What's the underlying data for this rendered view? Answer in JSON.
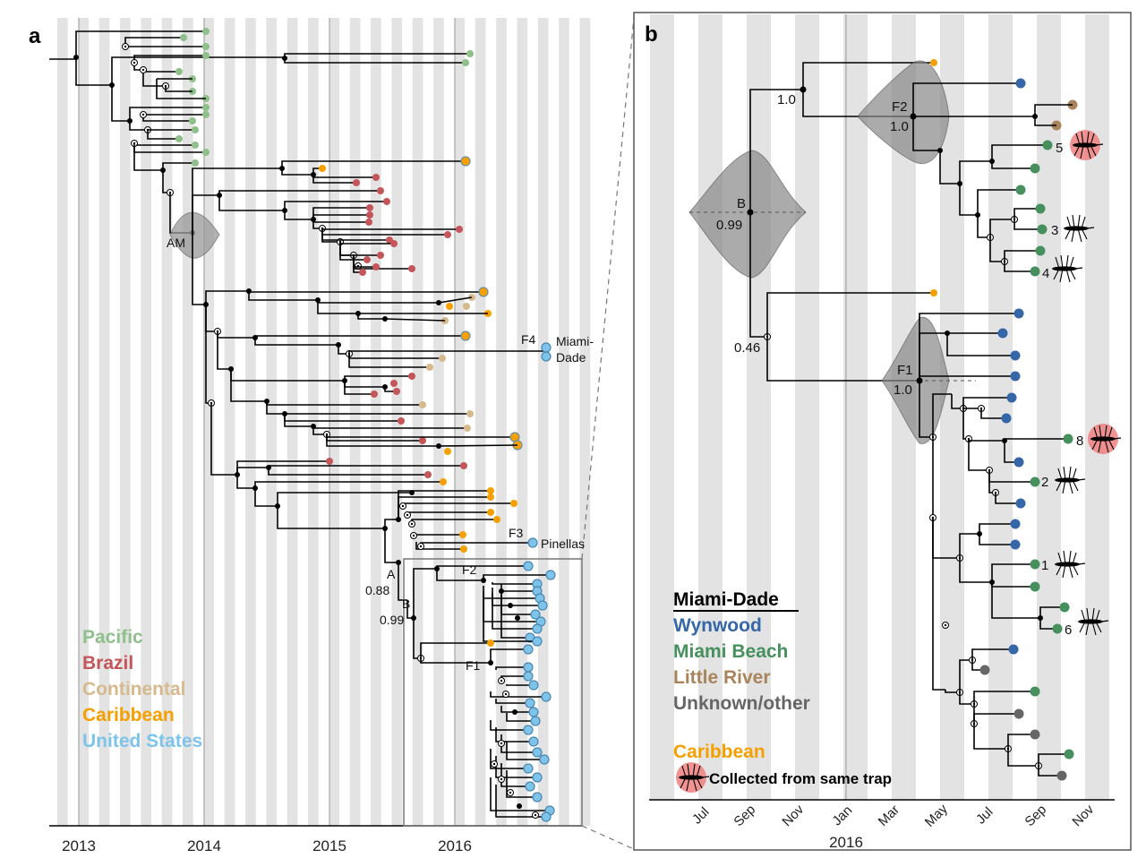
{
  "panel_a": {
    "label": "a",
    "year_ticks": [
      "2013",
      "2014",
      "2015",
      "2016"
    ],
    "node_labels": {
      "am": "AM",
      "a": "A",
      "a_support": "0.88",
      "b": "B",
      "b_support": "0.99",
      "f2": "F2",
      "f1": "F1",
      "f3": "F3",
      "f3_place": "Pinellas",
      "f4": "F4",
      "f4_place_1": "Miami-",
      "f4_place_2": "Dade"
    },
    "legend": [
      {
        "label": "Pacific",
        "color": "#8fbf8a"
      },
      {
        "label": "Brazil",
        "color": "#c4565a"
      },
      {
        "label": "Continental",
        "color": "#d7b98e"
      },
      {
        "label": "Caribbean",
        "color": "#f5a000"
      },
      {
        "label": "United States",
        "color": "#7ec4ea"
      }
    ]
  },
  "panel_b": {
    "label": "b",
    "month_ticks": [
      "Jul",
      "Sep",
      "Nov",
      "Jan",
      "Mar",
      "May",
      "Jul",
      "Sep",
      "Nov"
    ],
    "year_label": "2016",
    "node_labels": {
      "b": "B",
      "b_support": "0.99",
      "root_support": "0.46",
      "upper_support": "1.0",
      "f2": "F2",
      "f2_support": "1.0",
      "f1": "F1",
      "f1_support": "1.0"
    },
    "trap_numbers": [
      "5",
      "3",
      "4",
      "8",
      "2",
      "1",
      "6"
    ],
    "legend_title": "Miami-Dade",
    "legend": [
      {
        "label": "Wynwood",
        "color": "#3566a8"
      },
      {
        "label": "Miami Beach",
        "color": "#46905e"
      },
      {
        "label": "Little River",
        "color": "#a9845a"
      },
      {
        "label": "Unknown/other",
        "color": "#666666"
      }
    ],
    "caribbean_label": "Caribbean",
    "caribbean_color": "#f5a000",
    "trap_label": "Collected from same trap"
  }
}
